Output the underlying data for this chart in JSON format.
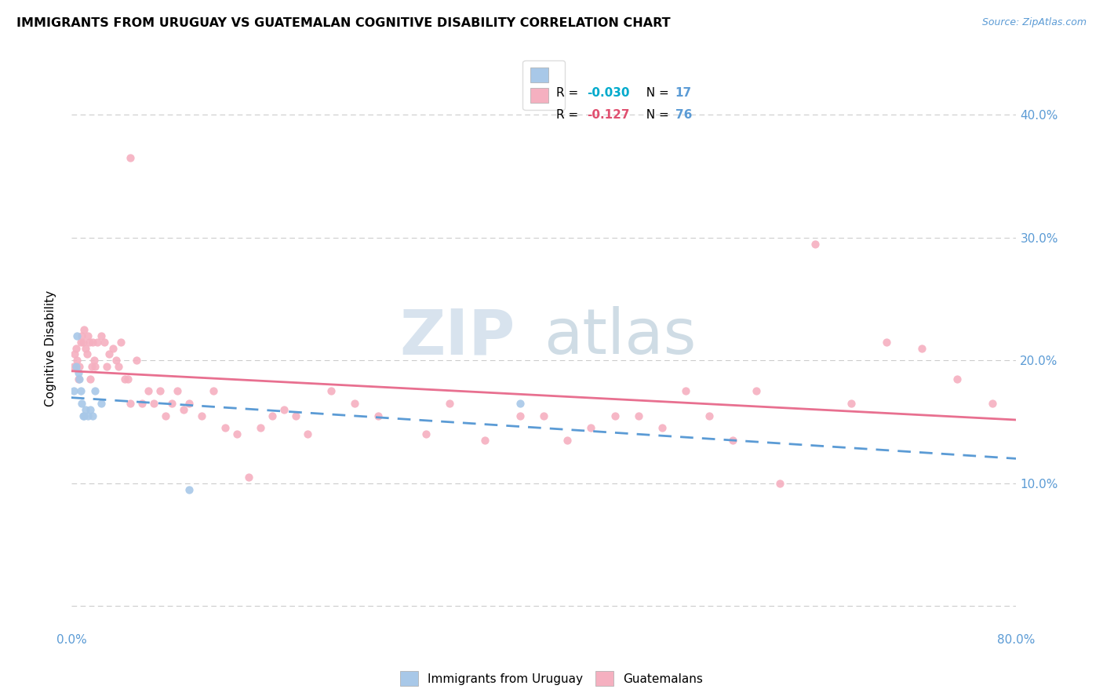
{
  "title": "IMMIGRANTS FROM URUGUAY VS GUATEMALAN COGNITIVE DISABILITY CORRELATION CHART",
  "source": "Source: ZipAtlas.com",
  "ylabel": "Cognitive Disability",
  "xlim": [
    0.0,
    0.8
  ],
  "ylim": [
    -0.02,
    0.44
  ],
  "legend_label1": "Immigrants from Uruguay",
  "legend_label2": "Guatemalans",
  "color_uruguay": "#a8c8e8",
  "color_guatemala": "#f5b0c0",
  "trendline_uruguay_color": "#5b9bd5",
  "trendline_guatemala_color": "#e87090",
  "watermark_text": "ZIPatlas",
  "watermark_zip_color": "#c8d8e8",
  "watermark_atlas_color": "#a0b8c8",
  "uruguay_x": [
    0.002,
    0.004,
    0.005,
    0.006,
    0.007,
    0.008,
    0.009,
    0.01,
    0.011,
    0.012,
    0.014,
    0.016,
    0.018,
    0.02,
    0.025,
    0.38,
    0.1
  ],
  "uruguay_y": [
    0.175,
    0.195,
    0.22,
    0.19,
    0.185,
    0.175,
    0.165,
    0.155,
    0.155,
    0.16,
    0.155,
    0.16,
    0.155,
    0.175,
    0.165,
    0.165,
    0.095
  ],
  "guatemala_x": [
    0.002,
    0.003,
    0.004,
    0.005,
    0.006,
    0.007,
    0.008,
    0.009,
    0.01,
    0.011,
    0.012,
    0.013,
    0.014,
    0.015,
    0.016,
    0.017,
    0.018,
    0.019,
    0.02,
    0.022,
    0.025,
    0.028,
    0.03,
    0.032,
    0.035,
    0.038,
    0.04,
    0.042,
    0.045,
    0.048,
    0.05,
    0.055,
    0.06,
    0.065,
    0.07,
    0.075,
    0.08,
    0.085,
    0.09,
    0.095,
    0.1,
    0.11,
    0.12,
    0.13,
    0.14,
    0.15,
    0.16,
    0.17,
    0.18,
    0.19,
    0.2,
    0.22,
    0.24,
    0.26,
    0.3,
    0.32,
    0.35,
    0.38,
    0.4,
    0.42,
    0.44,
    0.46,
    0.48,
    0.5,
    0.52,
    0.54,
    0.56,
    0.58,
    0.6,
    0.63,
    0.66,
    0.69,
    0.72,
    0.75,
    0.78,
    0.05
  ],
  "guatemala_y": [
    0.195,
    0.205,
    0.21,
    0.2,
    0.185,
    0.195,
    0.215,
    0.22,
    0.215,
    0.225,
    0.21,
    0.205,
    0.22,
    0.215,
    0.185,
    0.195,
    0.215,
    0.2,
    0.195,
    0.215,
    0.22,
    0.215,
    0.195,
    0.205,
    0.21,
    0.2,
    0.195,
    0.215,
    0.185,
    0.185,
    0.165,
    0.2,
    0.165,
    0.175,
    0.165,
    0.175,
    0.155,
    0.165,
    0.175,
    0.16,
    0.165,
    0.155,
    0.175,
    0.145,
    0.14,
    0.105,
    0.145,
    0.155,
    0.16,
    0.155,
    0.14,
    0.175,
    0.165,
    0.155,
    0.14,
    0.165,
    0.135,
    0.155,
    0.155,
    0.135,
    0.145,
    0.155,
    0.155,
    0.145,
    0.175,
    0.155,
    0.135,
    0.175,
    0.1,
    0.295,
    0.165,
    0.215,
    0.21,
    0.185,
    0.165,
    0.365
  ]
}
